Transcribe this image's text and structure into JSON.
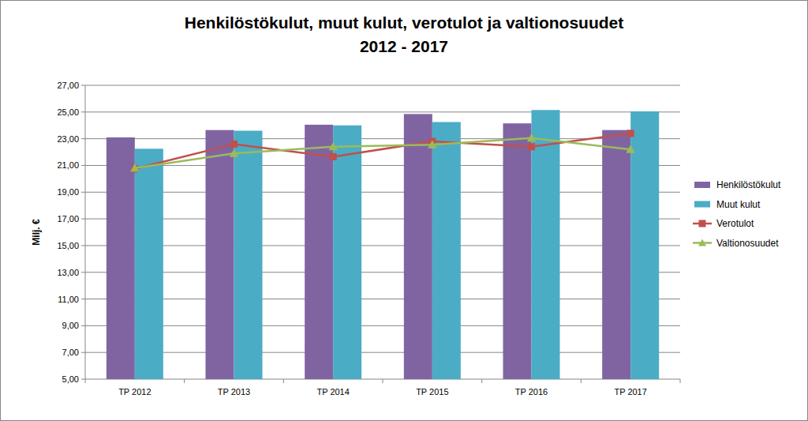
{
  "chart_data": {
    "type": "bar",
    "title": "Henkilöstökulut, muut kulut, verotulot ja valtionosuudet",
    "subtitle": "2012 - 2017",
    "y_label": "Milj. €",
    "categories": [
      "TP 2012",
      "TP 2013",
      "TP 2014",
      "TP 2015",
      "TP 2016",
      "TP 2017"
    ],
    "series": [
      {
        "name": "Henkilöstökulut",
        "type": "bar",
        "color": "#8064a2",
        "values": [
          23.1,
          23.65,
          24.05,
          24.85,
          24.15,
          23.65
        ]
      },
      {
        "name": "Muut kulut",
        "type": "bar",
        "color": "#4bacc6",
        "values": [
          22.25,
          23.6,
          24.0,
          24.25,
          25.15,
          25.05
        ]
      },
      {
        "name": "Verotulot",
        "type": "line",
        "color": "#c0504d",
        "marker": "square",
        "values": [
          20.75,
          22.6,
          21.65,
          22.8,
          22.4,
          23.4
        ]
      },
      {
        "name": "Valtionosuudet",
        "type": "line",
        "color": "#9bbb59",
        "marker": "triangle",
        "values": [
          20.8,
          21.9,
          22.4,
          22.55,
          23.05,
          22.2
        ]
      }
    ],
    "ylim": [
      5,
      27
    ],
    "yticks": [
      {
        "value": 5,
        "label": "5,00"
      },
      {
        "value": 7,
        "label": "7,00"
      },
      {
        "value": 9,
        "label": "9,00"
      },
      {
        "value": 11,
        "label": "11,00"
      },
      {
        "value": 13,
        "label": "13,00"
      },
      {
        "value": 15,
        "label": "15,00"
      },
      {
        "value": 17,
        "label": "17,00"
      },
      {
        "value": 19,
        "label": "19,00"
      },
      {
        "value": 21,
        "label": "21,00"
      },
      {
        "value": 23,
        "label": "23,00"
      },
      {
        "value": 25,
        "label": "25,00"
      },
      {
        "value": 27,
        "label": "27,00"
      }
    ],
    "grid": true,
    "legend": "right"
  }
}
